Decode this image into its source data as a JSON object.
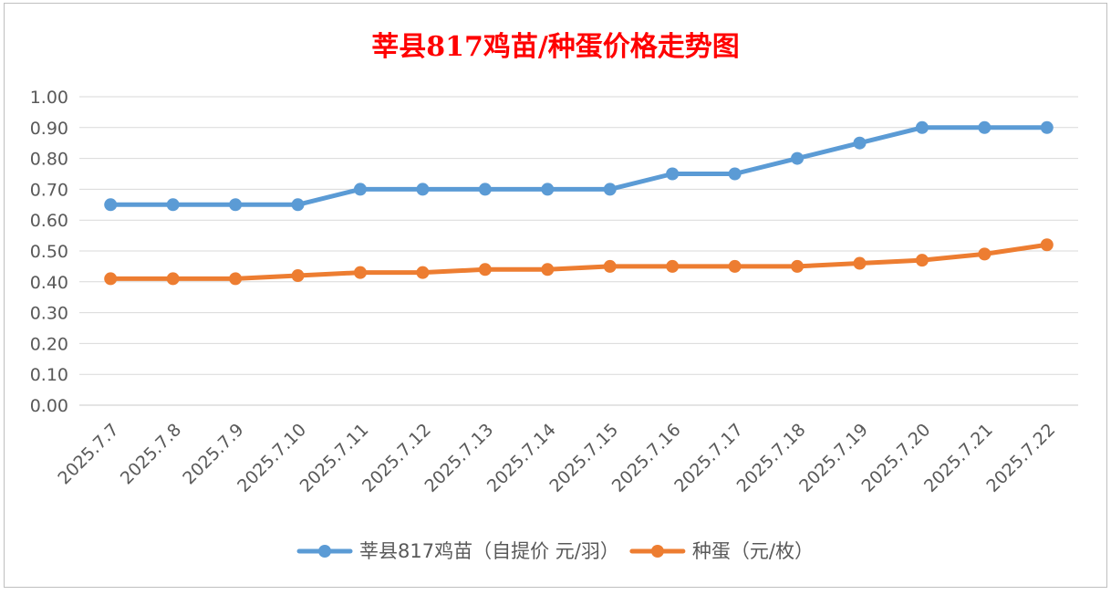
{
  "chart_data": {
    "type": "line",
    "title": "莘县817鸡苗/种蛋价格走势图",
    "xlabel": "",
    "ylabel": "",
    "categories": [
      "2025.7.7",
      "2025.7.8",
      "2025.7.9",
      "2025.7.10",
      "2025.7.11",
      "2025.7.12",
      "2025.7.13",
      "2025.7.14",
      "2025.7.15",
      "2025.7.16",
      "2025.7.17",
      "2025.7.18",
      "2025.7.19",
      "2025.7.20",
      "2025.7.21",
      "2025.7.22"
    ],
    "ylim": [
      0,
      1.0
    ],
    "yticks": [
      "0.00",
      "0.10",
      "0.20",
      "0.30",
      "0.40",
      "0.50",
      "0.60",
      "0.70",
      "0.80",
      "0.90",
      "1.00"
    ],
    "grid": true,
    "legend_position": "bottom",
    "series": [
      {
        "name": "莘县817鸡苗（自提价 元/羽）",
        "color": "#5b9bd5",
        "values": [
          0.65,
          0.65,
          0.65,
          0.65,
          0.7,
          0.7,
          0.7,
          0.7,
          0.7,
          0.75,
          0.75,
          0.8,
          0.85,
          0.9,
          0.9,
          0.9
        ]
      },
      {
        "name": "种蛋（元/枚）",
        "color": "#ed7d31",
        "values": [
          0.41,
          0.41,
          0.41,
          0.42,
          0.43,
          0.43,
          0.44,
          0.44,
          0.45,
          0.45,
          0.45,
          0.45,
          0.46,
          0.47,
          0.49,
          0.52
        ]
      }
    ]
  }
}
